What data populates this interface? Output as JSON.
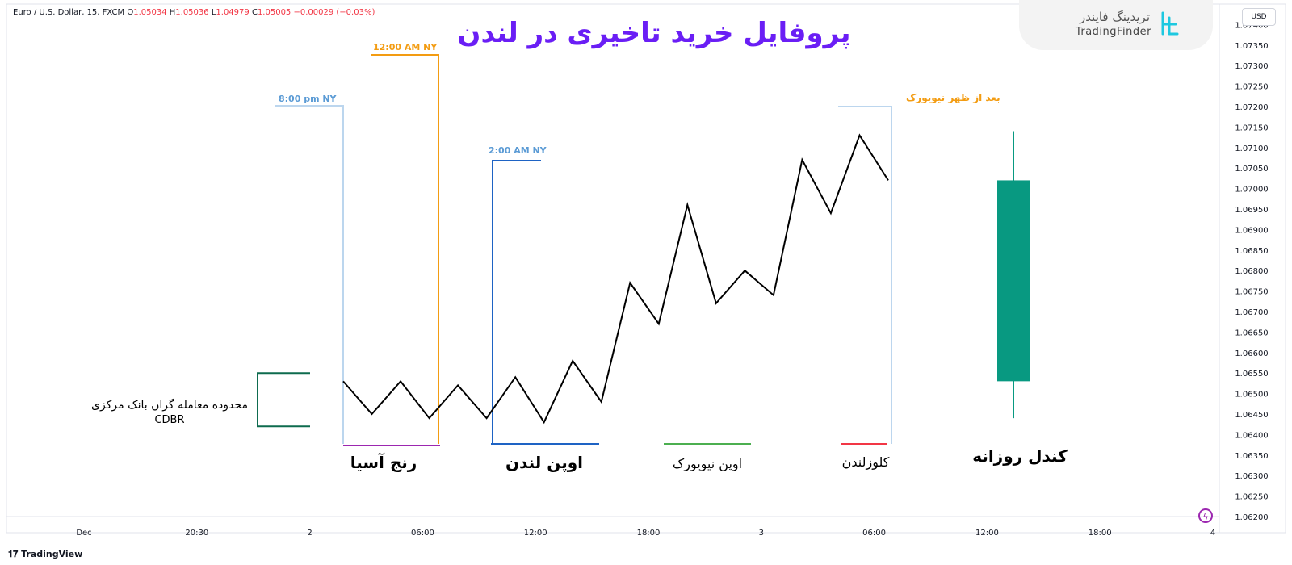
{
  "header": {
    "symbol_text": "Euro / U.S. Dollar, 15, FXCM",
    "o_label": "O",
    "o_value": "1.05034",
    "h_label": "H",
    "h_value": "1.05036",
    "l_label": "L",
    "l_value": "1.04979",
    "c_label": "C",
    "c_value": "1.05005",
    "change": "−0.00029 (−0.03%)"
  },
  "brand": {
    "persian": "تریدینگ فایندر",
    "english": "TradingFinder"
  },
  "currency_button": "USD",
  "footer": {
    "tradingview_label": "TradingView"
  },
  "colors": {
    "price_line": "#000000",
    "candle_body": "#089981",
    "title": "#6a1ef5",
    "marker_orange": "#f39c12",
    "marker_blue": "#1e63c4",
    "marker_lightblue": "#bcd6ee",
    "marker_purple": "#9c27b0",
    "marker_green": "#4caf50",
    "marker_red": "#f23645",
    "cdbr_green": "#0e6b4f"
  },
  "chart_data": {
    "type": "line",
    "title": "پروفایل خرید تاخیری در لندن",
    "y_axis": {
      "range": [
        1.062,
        1.0745
      ],
      "ticks": [
        "1.07400",
        "1.07350",
        "1.07300",
        "1.07250",
        "1.07200",
        "1.07150",
        "1.07100",
        "1.07050",
        "1.07000",
        "1.06950",
        "1.06900",
        "1.06850",
        "1.06800",
        "1.06750",
        "1.06700",
        "1.06650",
        "1.06600",
        "1.06550",
        "1.06500",
        "1.06450",
        "1.06400",
        "1.06350",
        "1.06300",
        "1.06250",
        "1.06200"
      ]
    },
    "x_axis": {
      "ticks": [
        "Dec",
        "20:30",
        "2",
        "06:00",
        "12:00",
        "18:00",
        "3",
        "06:00",
        "12:00",
        "18:00",
        "4"
      ]
    },
    "price_path": [
      {
        "step": 0,
        "y": 1.0653
      },
      {
        "step": 1,
        "y": 1.0645
      },
      {
        "step": 2,
        "y": 1.0653
      },
      {
        "step": 3,
        "y": 1.0644
      },
      {
        "step": 4,
        "y": 1.0652
      },
      {
        "step": 5,
        "y": 1.0644
      },
      {
        "step": 6,
        "y": 1.0654
      },
      {
        "step": 7,
        "y": 1.0643
      },
      {
        "step": 8,
        "y": 1.0658
      },
      {
        "step": 9,
        "y": 1.0648
      },
      {
        "step": 10,
        "y": 1.0677
      },
      {
        "step": 11,
        "y": 1.0667
      },
      {
        "step": 12,
        "y": 1.0696
      },
      {
        "step": 13,
        "y": 1.0672
      },
      {
        "step": 14,
        "y": 1.068
      },
      {
        "step": 15,
        "y": 1.0674
      },
      {
        "step": 16,
        "y": 1.0707
      },
      {
        "step": 17,
        "y": 1.0694
      },
      {
        "step": 18,
        "y": 1.0713
      },
      {
        "step": 19,
        "y": 1.0702
      }
    ],
    "daily_candle": {
      "open": 1.0653,
      "close": 1.0702,
      "high": 1.0714,
      "low": 1.0644
    },
    "session_labels": {
      "asia_range": "رنج آسیا",
      "london_open": "اوپن لندن",
      "ny_open": "اوپن نیویورک",
      "london_close": "کلوزلندن",
      "daily_candle": "کندل روزانه"
    },
    "time_markers": {
      "t_8pm": "8:00 pm NY",
      "t_12am": "12:00 AM NY",
      "t_2am": "2:00 AM NY",
      "after_noon_ny": "بعد از ظهر نیویورک"
    },
    "cdbr": {
      "label_fa": "محدوده معامله گران بانک مرکزی",
      "label_en": "CDBR",
      "range": [
        1.0642,
        1.0655
      ]
    }
  }
}
